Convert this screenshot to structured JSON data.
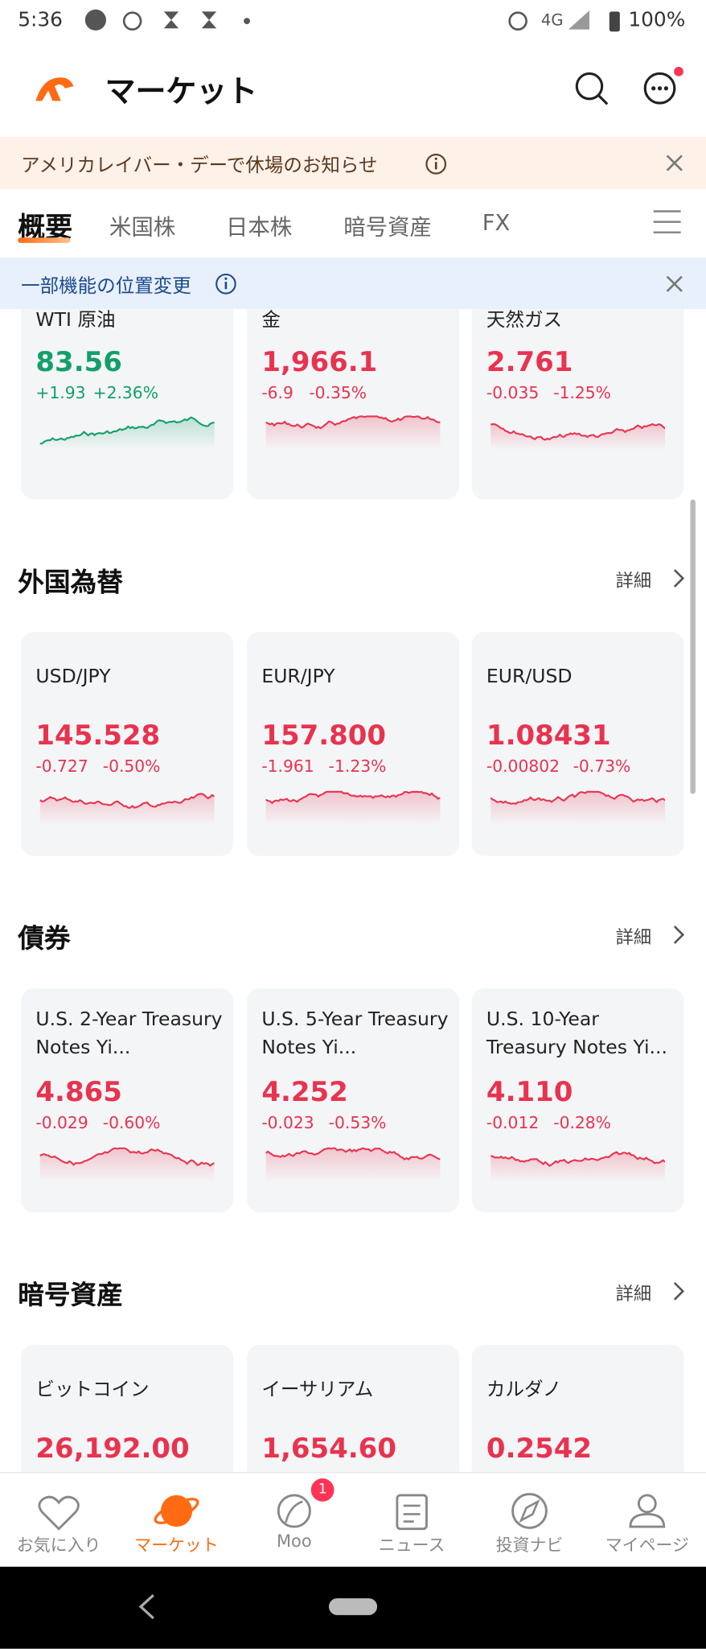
{
  "status_bar": {
    "time": "5:36",
    "network": "4G",
    "battery": "100%"
  },
  "header": {
    "title": "マーケット"
  },
  "banner": {
    "text": "アメリカレイバー・デーで休場のお知らせ"
  },
  "tabs": [
    "概要",
    "米国株",
    "日本株",
    "暗号資産",
    "FX"
  ],
  "notice": {
    "text": "一部機能の位置変更"
  },
  "commodities": {
    "cards": [
      {
        "name": "WTI 原油",
        "value": "83.56",
        "change": "+1.93",
        "percent": "+2.36%"
      },
      {
        "name": "金",
        "value": "1,966.1",
        "change": "-6.9",
        "percent": "-0.35%"
      },
      {
        "name": "天然ガス",
        "value": "2.761",
        "change": "-0.035",
        "percent": "-1.25%"
      }
    ]
  },
  "sections": [
    {
      "title": "外国為替",
      "detail": "詳細",
      "cards": [
        {
          "name": "USD/JPY",
          "value": "145.528",
          "change": "-0.727",
          "percent": "-0.50%"
        },
        {
          "name": "EUR/JPY",
          "value": "157.800",
          "change": "-1.961",
          "percent": "-1.23%"
        },
        {
          "name": "EUR/USD",
          "value": "1.08431",
          "change": "-0.00802",
          "percent": "-0.73%"
        }
      ]
    },
    {
      "title": "債券",
      "detail": "詳細",
      "cards": [
        {
          "name": "U.S. 2-Year Treasury Notes Yi...",
          "value": "4.865",
          "change": "-0.029",
          "percent": "-0.60%"
        },
        {
          "name": "U.S. 5-Year Treasury Notes Yi...",
          "value": "4.252",
          "change": "-0.023",
          "percent": "-0.53%"
        },
        {
          "name": "U.S. 10-Year Treasury Notes Yi...",
          "value": "4.110",
          "change": "-0.012",
          "percent": "-0.28%"
        }
      ]
    },
    {
      "title": "暗号資産",
      "detail": "詳細",
      "cards": [
        {
          "name": "ビットコイン",
          "value": "26,192.00"
        },
        {
          "name": "イーサリアム",
          "value": "1,654.60"
        },
        {
          "name": "カルダノ",
          "value": "0.2542"
        }
      ]
    }
  ],
  "bottom_nav": [
    {
      "label": "お気に入り"
    },
    {
      "label": "マーケット"
    },
    {
      "label": "Moo",
      "badge": "1"
    },
    {
      "label": "ニュース"
    },
    {
      "label": "投資ナビ"
    },
    {
      "label": "マイページ"
    }
  ]
}
